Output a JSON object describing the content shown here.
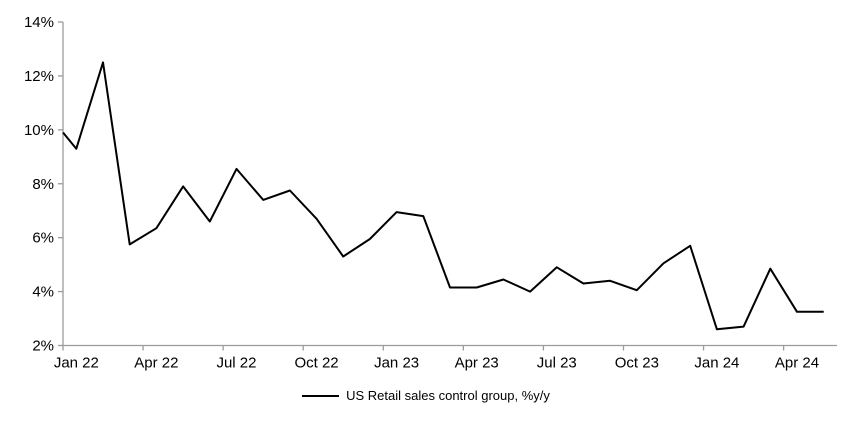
{
  "chart": {
    "legend_label": "US Retail sales control group, %y/y"
  },
  "chart_data": {
    "type": "line",
    "title": "",
    "xlabel": "",
    "ylabel": "",
    "x": [
      "Jan 22",
      "Feb 22",
      "Mar 22",
      "Apr 22",
      "May 22",
      "Jun 22",
      "Jul 22",
      "Aug 22",
      "Sep 22",
      "Oct 22",
      "Nov 22",
      "Dec 22",
      "Jan 23",
      "Feb 23",
      "Mar 23",
      "Apr 23",
      "May 23",
      "Jun 23",
      "Jul 23",
      "Aug 23",
      "Sep 23",
      "Oct 23",
      "Nov 23",
      "Dec 23",
      "Jan 24",
      "Feb 24",
      "Mar 24",
      "Apr 24",
      "May 24"
    ],
    "series": [
      {
        "name": "US Retail sales control group, %y/y",
        "values": [
          9.3,
          12.5,
          5.75,
          6.35,
          7.9,
          6.6,
          8.55,
          7.4,
          7.75,
          6.7,
          5.3,
          5.95,
          6.95,
          6.8,
          4.15,
          4.15,
          4.45,
          4.0,
          4.9,
          4.3,
          4.4,
          4.05,
          5.05,
          5.7,
          2.6,
          2.7,
          4.85,
          3.25,
          3.25
        ]
      }
    ],
    "lead_in_value_at_y_axis": 9.9,
    "ylim": [
      2,
      14
    ],
    "ytick_step": 2,
    "ytick_labels": [
      "2%",
      "4%",
      "6%",
      "8%",
      "10%",
      "12%",
      "14%"
    ],
    "xtick_every": 3,
    "xtick_labels": [
      "Jan 22",
      "Apr 22",
      "Jul 22",
      "Oct 22",
      "Jan 23",
      "Apr 23",
      "Jul 23",
      "Oct 23",
      "Jan 24",
      "Apr 24"
    ],
    "grid": false,
    "legend_position": "bottom-center",
    "colors": {
      "line": "#000000",
      "axis": "#9b9b9b",
      "text": "#000000",
      "background": "#ffffff"
    }
  }
}
